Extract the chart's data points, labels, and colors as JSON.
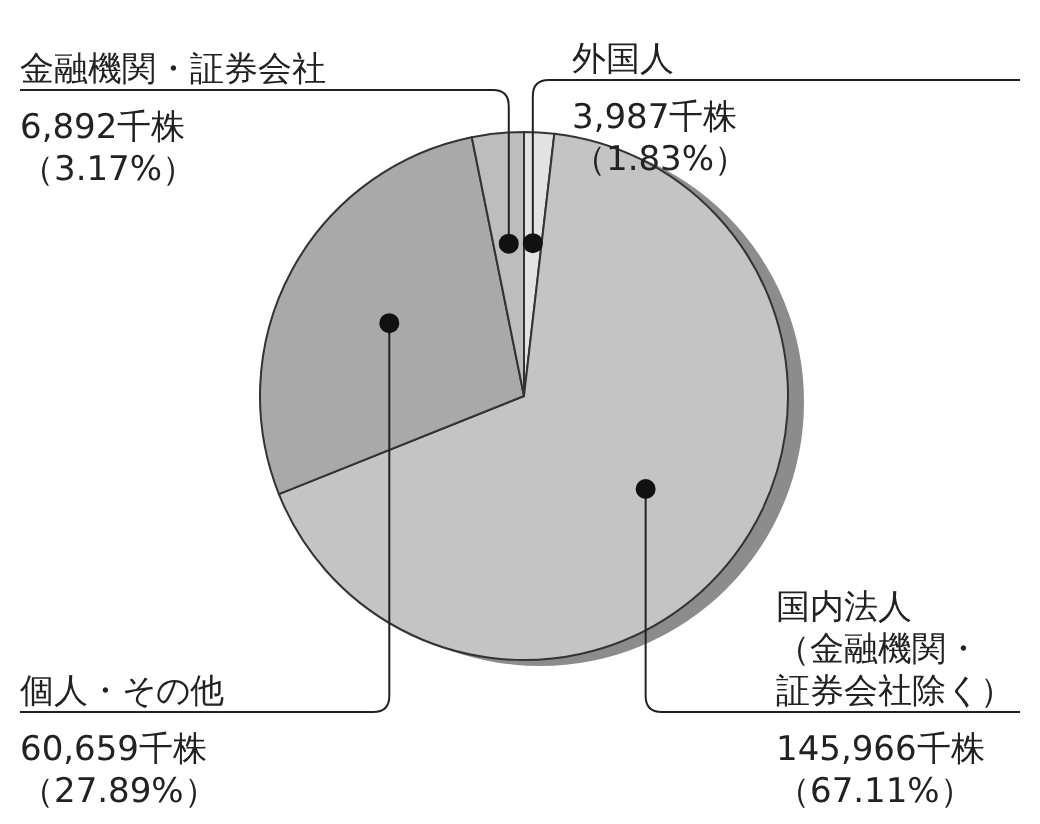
{
  "chart_data": {
    "type": "pie",
    "categories": [
      "外国人",
      "国内法人（金融機関・証券会社除く）",
      "個人・その他",
      "金融機関・証券会社"
    ],
    "values": [
      3987,
      145966,
      60659,
      6892
    ],
    "value_labels": [
      "3,987千株（1.83%）",
      "145,966千株（67.11%）",
      "60,659千株（27.89%）",
      "6,892千株（3.17%）"
    ],
    "colors": [
      "#e2e2e2",
      "#c4c4c4",
      "#a9a9a9",
      "#bdbdbd"
    ]
  }
}
